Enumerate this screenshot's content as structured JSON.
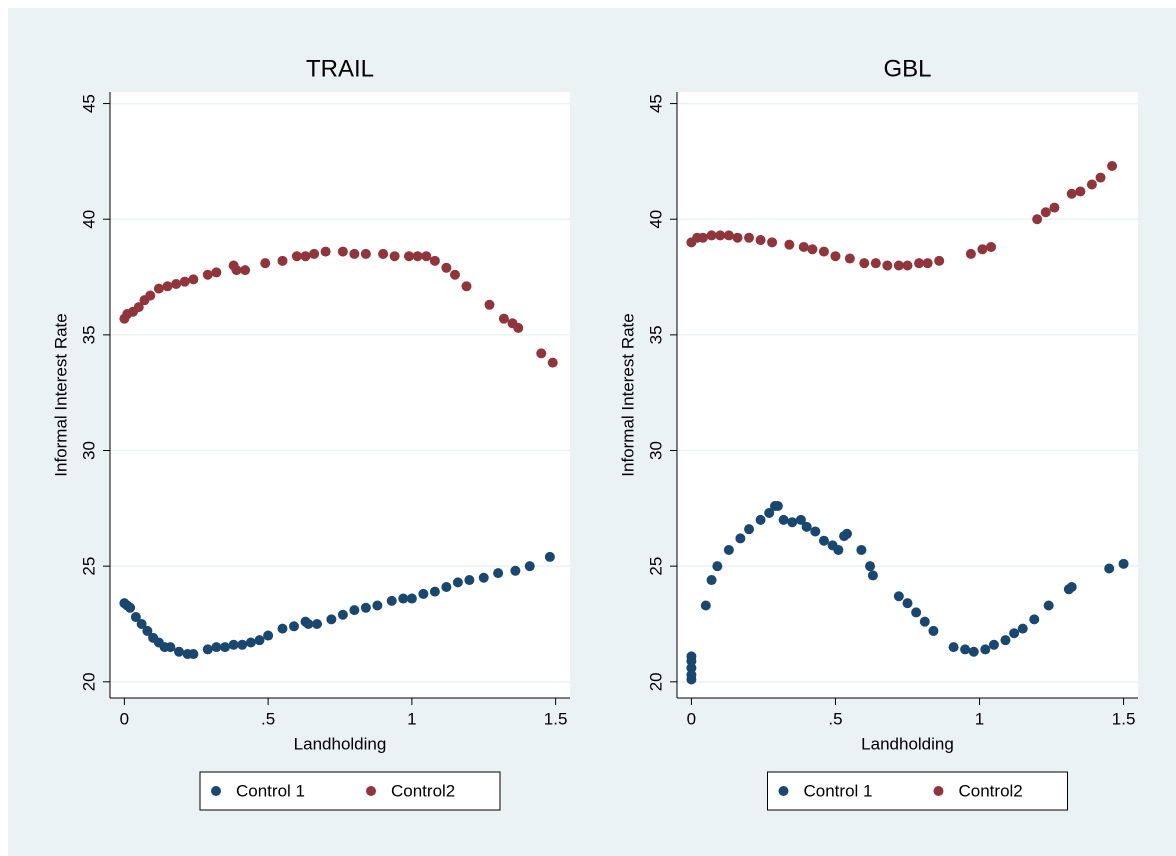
{
  "chart_data": [
    {
      "type": "scatter",
      "title": "TRAIL",
      "x_label": "Landholding",
      "y_label": "Informal Interest Rate",
      "xlim": [
        -0.05,
        1.55
      ],
      "xticks": [
        0,
        {
          "value": 0.5,
          "label": ".5"
        },
        1,
        1.5
      ],
      "ylim": [
        19.3,
        45.5
      ],
      "yticks": [
        20,
        25,
        30,
        35,
        40,
        45
      ],
      "grid": true,
      "legend": "bottom",
      "series": [
        {
          "name": "Control 1",
          "color": "#1a476f",
          "x": [
            0,
            0.01,
            0.02,
            0.04,
            0.06,
            0.08,
            0.1,
            0.12,
            0.14,
            0.16,
            0.19,
            0.22,
            0.24,
            0.29,
            0.32,
            0.35,
            0.38,
            0.41,
            0.44,
            0.47,
            0.5,
            0.55,
            0.59,
            0.63,
            0.64,
            0.67,
            0.72,
            0.76,
            0.8,
            0.84,
            0.88,
            0.93,
            0.97,
            1.0,
            1.04,
            1.08,
            1.12,
            1.16,
            1.2,
            1.25,
            1.3,
            1.36,
            1.41,
            1.48
          ],
          "values": [
            23.4,
            23.3,
            23.2,
            22.8,
            22.5,
            22.2,
            21.9,
            21.7,
            21.5,
            21.5,
            21.3,
            21.2,
            21.2,
            21.4,
            21.5,
            21.5,
            21.6,
            21.6,
            21.7,
            21.8,
            22.0,
            22.3,
            22.4,
            22.6,
            22.5,
            22.5,
            22.7,
            22.9,
            23.1,
            23.2,
            23.3,
            23.5,
            23.6,
            23.6,
            23.8,
            23.9,
            24.1,
            24.3,
            24.4,
            24.5,
            24.7,
            24.8,
            25.0,
            25.4
          ]
        },
        {
          "name": "Control2",
          "color": "#90353b",
          "x": [
            0,
            0.01,
            0.03,
            0.05,
            0.07,
            0.09,
            0.12,
            0.15,
            0.18,
            0.21,
            0.24,
            0.29,
            0.32,
            0.38,
            0.39,
            0.42,
            0.49,
            0.55,
            0.6,
            0.63,
            0.66,
            0.7,
            0.76,
            0.8,
            0.84,
            0.9,
            0.94,
            0.99,
            1.02,
            1.05,
            1.08,
            1.12,
            1.15,
            1.19,
            1.27,
            1.32,
            1.35,
            1.37,
            1.45,
            1.49
          ],
          "values": [
            35.7,
            35.9,
            36.0,
            36.2,
            36.5,
            36.7,
            37.0,
            37.1,
            37.2,
            37.3,
            37.4,
            37.6,
            37.7,
            38.0,
            37.8,
            37.8,
            38.1,
            38.2,
            38.4,
            38.4,
            38.5,
            38.6,
            38.6,
            38.5,
            38.5,
            38.5,
            38.4,
            38.4,
            38.4,
            38.4,
            38.2,
            37.9,
            37.6,
            37.1,
            36.3,
            35.7,
            35.5,
            35.3,
            34.2,
            33.8
          ]
        }
      ]
    },
    {
      "type": "scatter",
      "title": "GBL",
      "x_label": "Landholding",
      "y_label": "Informal Interest Rate",
      "xlim": [
        -0.05,
        1.55
      ],
      "xticks": [
        0,
        {
          "value": 0.5,
          "label": ".5"
        },
        1,
        1.5
      ],
      "ylim": [
        19.3,
        45.5
      ],
      "yticks": [
        20,
        25,
        30,
        35,
        40,
        45
      ],
      "grid": true,
      "legend": "bottom",
      "series": [
        {
          "name": "Control 1",
          "color": "#1a476f",
          "x": [
            0,
            0,
            0,
            0,
            0,
            0.05,
            0.07,
            0.09,
            0.13,
            0.17,
            0.2,
            0.24,
            0.27,
            0.29,
            0.3,
            0.32,
            0.35,
            0.38,
            0.4,
            0.43,
            0.46,
            0.49,
            0.51,
            0.53,
            0.54,
            0.59,
            0.62,
            0.63,
            0.72,
            0.75,
            0.78,
            0.81,
            0.84,
            0.91,
            0.95,
            0.98,
            1.02,
            1.05,
            1.09,
            1.12,
            1.15,
            1.19,
            1.24,
            1.31,
            1.32,
            1.45,
            1.5
          ],
          "values": [
            20.1,
            20.3,
            20.6,
            20.9,
            21.1,
            23.3,
            24.4,
            25.0,
            25.7,
            26.2,
            26.6,
            27.0,
            27.3,
            27.6,
            27.6,
            27.0,
            26.9,
            27.0,
            26.7,
            26.5,
            26.1,
            25.9,
            25.7,
            26.3,
            26.4,
            25.7,
            25.0,
            24.6,
            23.7,
            23.4,
            23.0,
            22.6,
            22.2,
            21.5,
            21.4,
            21.3,
            21.4,
            21.6,
            21.8,
            22.1,
            22.3,
            22.7,
            23.3,
            24.0,
            24.1,
            24.9,
            25.1
          ]
        },
        {
          "name": "Control2",
          "color": "#90353b",
          "x": [
            0,
            0.02,
            0.04,
            0.07,
            0.1,
            0.13,
            0.16,
            0.2,
            0.24,
            0.28,
            0.34,
            0.39,
            0.42,
            0.46,
            0.5,
            0.55,
            0.6,
            0.64,
            0.68,
            0.72,
            0.75,
            0.79,
            0.82,
            0.86,
            0.97,
            1.01,
            1.04,
            1.2,
            1.23,
            1.26,
            1.32,
            1.35,
            1.39,
            1.42,
            1.46
          ],
          "values": [
            39.0,
            39.2,
            39.2,
            39.3,
            39.3,
            39.3,
            39.2,
            39.2,
            39.1,
            39.0,
            38.9,
            38.8,
            38.7,
            38.6,
            38.4,
            38.3,
            38.1,
            38.1,
            38.0,
            38.0,
            38.0,
            38.1,
            38.1,
            38.2,
            38.5,
            38.7,
            38.8,
            40.0,
            40.3,
            40.5,
            41.1,
            41.2,
            41.5,
            41.8,
            42.3
          ]
        }
      ]
    }
  ]
}
